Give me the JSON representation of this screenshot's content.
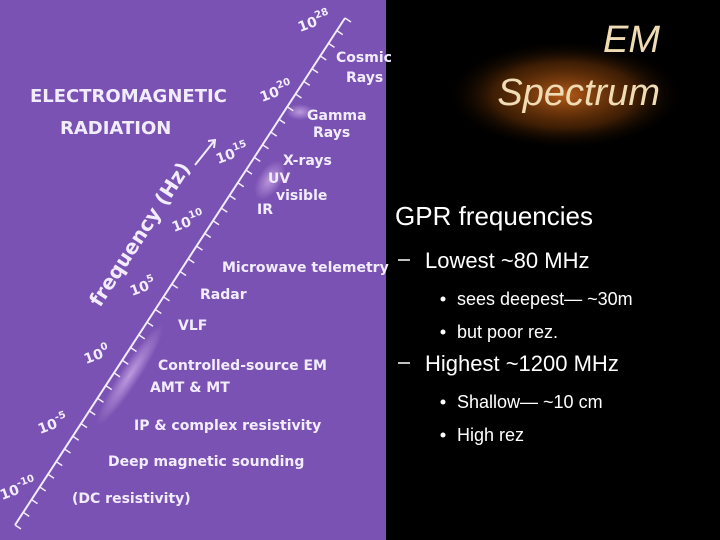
{
  "slide": {
    "title": [
      "EM",
      "Spectrum"
    ],
    "bullets": [
      {
        "text": "GPR frequencies",
        "items": [
          {
            "text": "Lowest ~80 MHz",
            "items": [
              "sees deepest— ~30m",
              "but poor rez."
            ]
          },
          {
            "text": "Highest ~1200 MHz",
            "items": [
              "Shallow— ~10 cm",
              "High rez"
            ]
          }
        ]
      }
    ]
  },
  "figure": {
    "heading": [
      "ELECTROMAGNETIC",
      "RADIATION"
    ],
    "axis_label": "frequency (Hz)",
    "ticks": [
      {
        "base": "10",
        "exp": "28"
      },
      {
        "base": "10",
        "exp": "20"
      },
      {
        "base": "10",
        "exp": "15"
      },
      {
        "base": "10",
        "exp": "10"
      },
      {
        "base": "10",
        "exp": "5"
      },
      {
        "base": "10",
        "exp": "0"
      },
      {
        "base": "10",
        "exp": "-5"
      },
      {
        "base": "10",
        "exp": "-10"
      }
    ],
    "bands": [
      "Cosmic",
      "Rays",
      "Gamma",
      "Rays",
      "X-rays",
      "UV",
      "visible",
      "IR",
      "Microwave telemetry",
      "Radar",
      "VLF",
      "Controlled-source EM",
      "AMT & MT",
      "IP & complex resistivity",
      "Deep magnetic sounding",
      "(DC resistivity)"
    ]
  }
}
